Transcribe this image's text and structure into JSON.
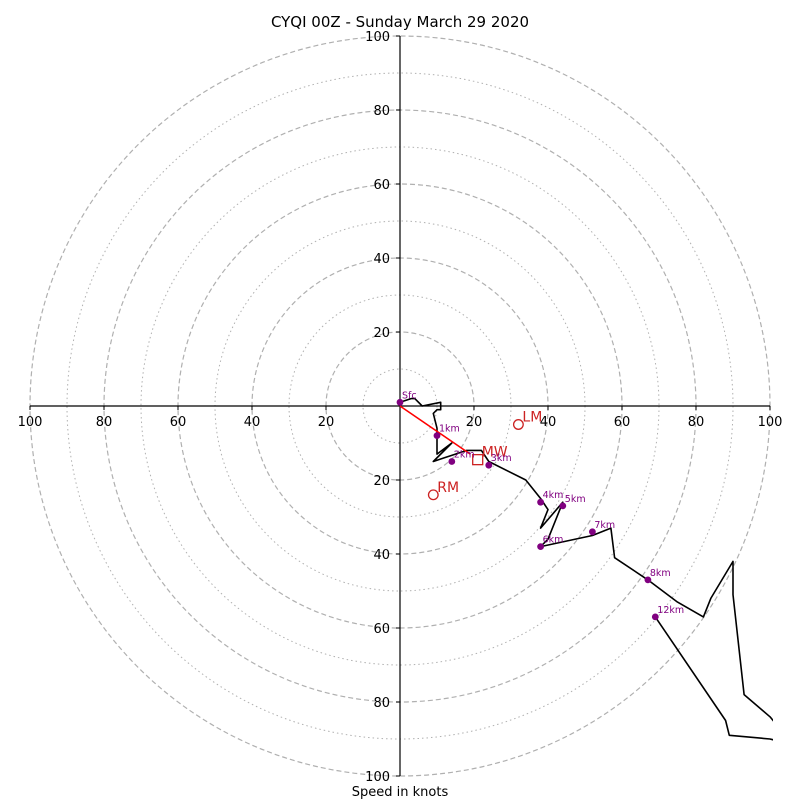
{
  "chart_data": {
    "type": "hodograph",
    "title": "CYQI 00Z - Sunday March 29 2020",
    "xlabel": "Speed in knots",
    "ylabel": "",
    "xlim": [
      -100,
      100
    ],
    "ylim": [
      -100,
      100
    ],
    "ring_major": [
      20,
      40,
      60,
      80,
      100
    ],
    "ring_minor": [
      10,
      30,
      50,
      70,
      90
    ],
    "x_ticks": [
      "100",
      "80",
      "60",
      "40",
      "20",
      "20",
      "40",
      "60",
      "80",
      "100"
    ],
    "y_ticks": [
      "100",
      "80",
      "60",
      "40",
      "20",
      "20",
      "40",
      "60",
      "80",
      "100"
    ],
    "trace": [
      [
        0,
        1
      ],
      [
        3,
        2
      ],
      [
        4,
        2
      ],
      [
        6,
        0
      ],
      [
        11,
        1
      ],
      [
        11,
        -1
      ],
      [
        10,
        -1
      ],
      [
        9,
        -2
      ],
      [
        10,
        -6
      ],
      [
        10,
        -13
      ],
      [
        14,
        -10
      ],
      [
        9,
        -15
      ],
      [
        12,
        -14
      ],
      [
        15,
        -13
      ],
      [
        18,
        -12
      ],
      [
        22,
        -12
      ],
      [
        24,
        -15
      ],
      [
        34,
        -20
      ],
      [
        38,
        -25
      ],
      [
        40,
        -28
      ],
      [
        38,
        -33
      ],
      [
        44,
        -26
      ],
      [
        40,
        -36
      ],
      [
        38,
        -38
      ],
      [
        52,
        -35
      ],
      [
        57,
        -33
      ],
      [
        58,
        -41
      ],
      [
        67,
        -47
      ],
      [
        75,
        -53
      ],
      [
        82,
        -57
      ],
      [
        84,
        -52
      ],
      [
        90,
        -42
      ],
      [
        90,
        -51
      ],
      [
        93,
        -78
      ],
      [
        100,
        -84
      ],
      [
        105,
        -90
      ],
      [
        110,
        -95
      ],
      [
        108,
        -92
      ],
      [
        100,
        -90
      ],
      [
        89,
        -89
      ],
      [
        88,
        -85
      ],
      [
        69,
        -57
      ]
    ],
    "height_markers": [
      {
        "label": "Sfc",
        "u": 0,
        "v": 1
      },
      {
        "label": "1km",
        "u": 10,
        "v": -8
      },
      {
        "label": "2km",
        "u": 14,
        "v": -15
      },
      {
        "label": "3km",
        "u": 24,
        "v": -16
      },
      {
        "label": "4km",
        "u": 38,
        "v": -26
      },
      {
        "label": "5km",
        "u": 44,
        "v": -27
      },
      {
        "label": "6km",
        "u": 38,
        "v": -38
      },
      {
        "label": "7km",
        "u": 52,
        "v": -34
      },
      {
        "label": "8km",
        "u": 67,
        "v": -47
      },
      {
        "label": "12km",
        "u": 69,
        "v": -57
      }
    ],
    "storm_motion": {
      "vector_to": [
        19,
        -13
      ],
      "markers": [
        {
          "label": "LM",
          "u": 32,
          "v": -5,
          "shape": "circle"
        },
        {
          "label": "MW",
          "u": 21,
          "v": -14.5,
          "shape": "square"
        },
        {
          "label": "RM",
          "u": 9,
          "v": -24,
          "shape": "circle"
        }
      ]
    },
    "colors": {
      "trace": "#000000",
      "markers": "#800080",
      "storm_motion": "#cc2222",
      "vector": "#ff0000",
      "rings": "#b0b0b0"
    }
  }
}
